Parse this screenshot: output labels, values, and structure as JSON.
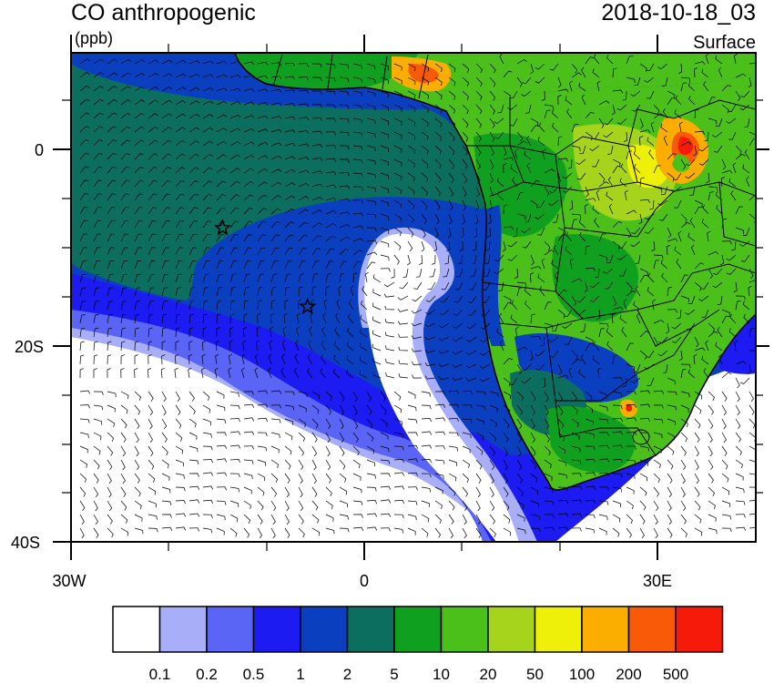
{
  "header": {
    "title": "CO anthropogenic",
    "units": "(ppb)",
    "timestamp": "2018-10-18_03",
    "level": "Surface"
  },
  "axes": {
    "y_ticks": [
      "0",
      "20S",
      "40S"
    ],
    "x_ticks": [
      "30W",
      "0",
      "30E"
    ]
  },
  "colorbar": {
    "colors": [
      "#ffffff",
      "#a8aef7",
      "#5a64f5",
      "#1b1bf2",
      "#0a40c0",
      "#0b6e5e",
      "#10a020",
      "#4cc01a",
      "#a6d41c",
      "#eef00a",
      "#fcae00",
      "#f85a08",
      "#f51a0a"
    ],
    "labels": [
      "0.1",
      "0.2",
      "0.5",
      "1",
      "2",
      "5",
      "10",
      "20",
      "50",
      "100",
      "200",
      "500"
    ]
  },
  "markers": [
    {
      "name": "station-star-1",
      "lon": -14.5,
      "lat": -8.0
    },
    {
      "name": "station-star-2",
      "lon": -5.8,
      "lat": -16.0
    }
  ]
}
